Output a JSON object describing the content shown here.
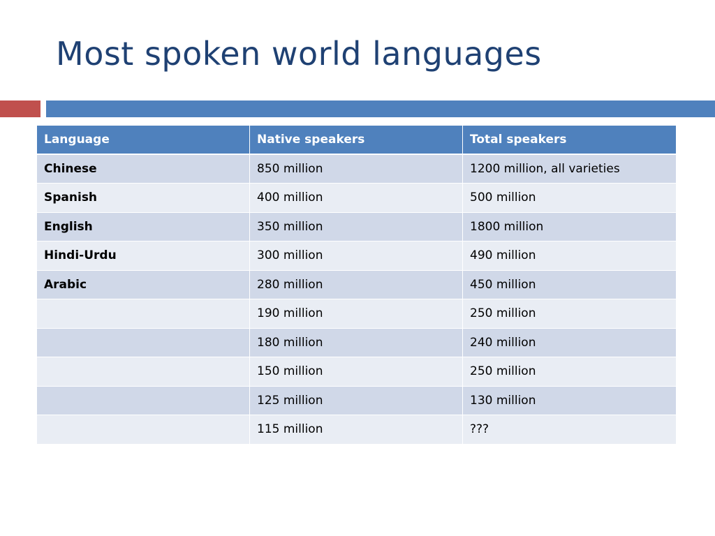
{
  "slide": {
    "title": "Most spoken world languages"
  },
  "colors": {
    "title": "#1f4173",
    "accent_red": "#c0504d",
    "accent_blue": "#4f81bd",
    "header_bg": "#4f81bd",
    "row_odd_bg": "#d0d8e8",
    "row_even_bg": "#e9edf4"
  },
  "table": {
    "headers": [
      "Language",
      "Native speakers",
      "Total speakers"
    ],
    "rows": [
      [
        "Chinese",
        "850 million",
        "1200 million, all varieties"
      ],
      [
        "Spanish",
        "400 million",
        "500 million"
      ],
      [
        "English",
        "350 million",
        "1800 million"
      ],
      [
        "Hindi-Urdu",
        "300 million",
        "490 million"
      ],
      [
        "Arabic",
        "280 million",
        "450 million"
      ],
      [
        "",
        "190 million",
        "250 million"
      ],
      [
        "",
        "180 million",
        "240 million"
      ],
      [
        "",
        "150 million",
        "250 million"
      ],
      [
        "",
        "125 million",
        "130 million"
      ],
      [
        "",
        "115 million",
        "???"
      ]
    ]
  }
}
